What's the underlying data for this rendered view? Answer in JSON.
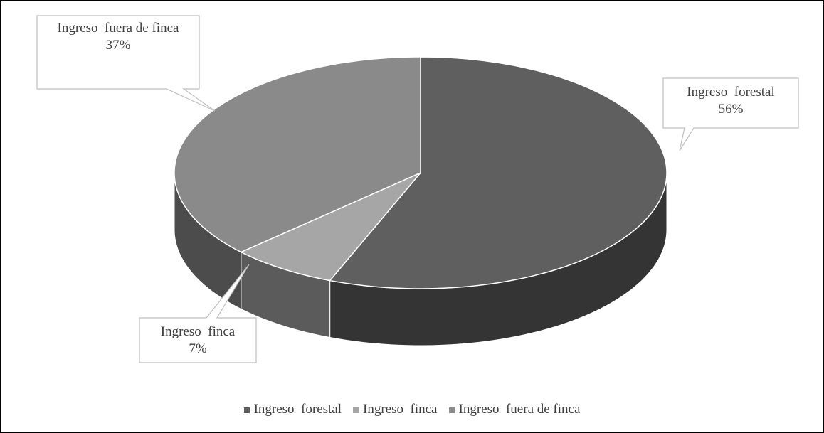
{
  "chart_data": {
    "type": "pie",
    "categories": [
      "Ingreso  forestal",
      "Ingreso  finca",
      "Ingreso  fuera de finca"
    ],
    "values": [
      56,
      7,
      37
    ],
    "value_labels": [
      "56%",
      "7%",
      "37%"
    ],
    "colors": [
      "#5f5f5f",
      "#a6a6a6",
      "#8a8a8a"
    ],
    "legend": "bottom"
  }
}
